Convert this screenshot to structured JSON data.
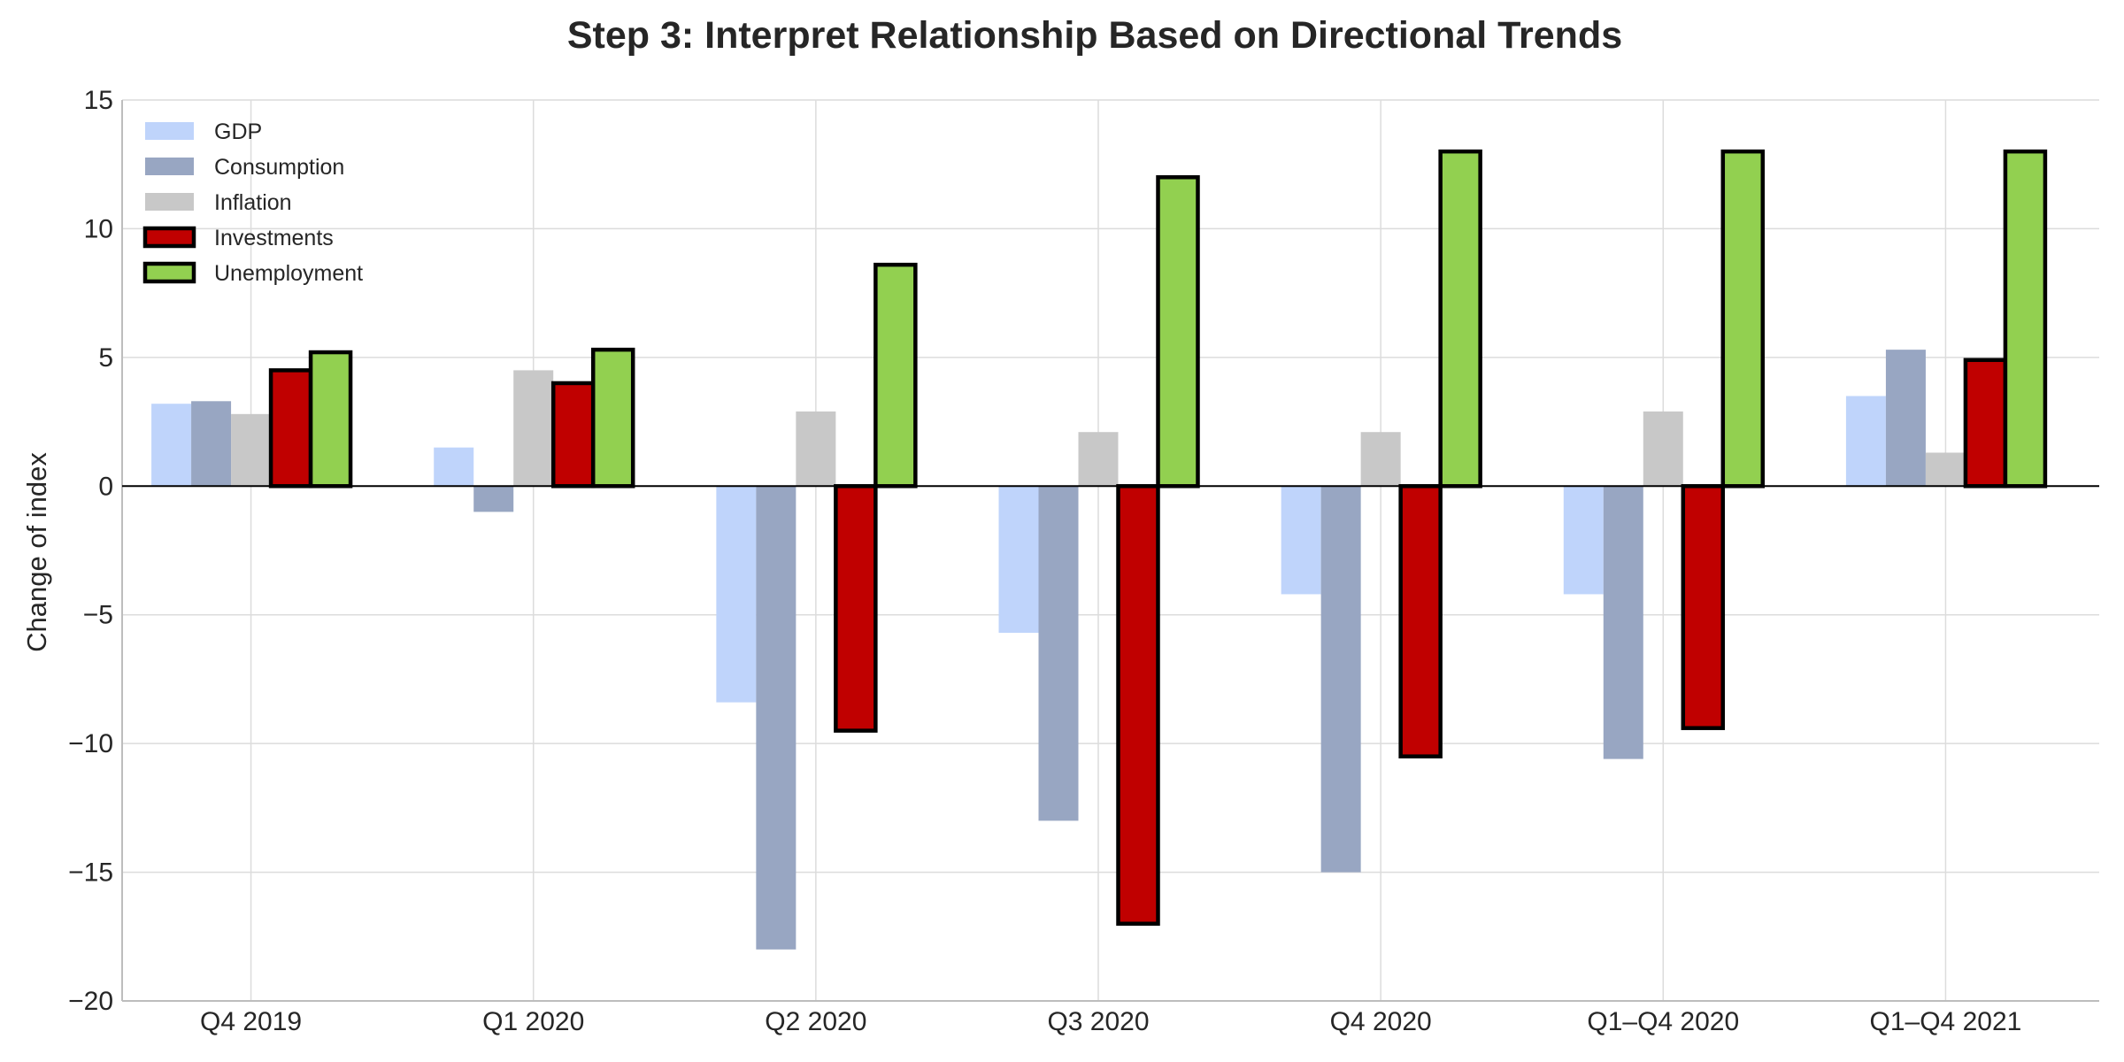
{
  "chart_data": {
    "type": "bar",
    "title": "Step 3: Interpret Relationship Based on Directional Trends",
    "xlabel": "",
    "ylabel": "Change of index",
    "ylim": [
      -20,
      15
    ],
    "yticks": [
      -20,
      -15,
      -10,
      -5,
      0,
      5,
      10,
      15
    ],
    "grid": true,
    "legend_position": "top-left",
    "categories": [
      "Q4 2019",
      "Q1 2020",
      "Q2 2020",
      "Q3 2020",
      "Q4 2020",
      "Q1–Q4 2020",
      "Q1–Q4 2021"
    ],
    "series": [
      {
        "name": "GDP",
        "color": "#bfd4fb",
        "outlined": false,
        "values": [
          3.2,
          1.5,
          -8.4,
          -5.7,
          -4.2,
          -4.2,
          3.5
        ]
      },
      {
        "name": "Consumption",
        "color": "#98a6c2",
        "outlined": false,
        "values": [
          3.3,
          -1.0,
          -18.0,
          -13.0,
          -15.0,
          -10.6,
          5.3
        ]
      },
      {
        "name": "Inflation",
        "color": "#c8c8c8",
        "outlined": false,
        "values": [
          2.8,
          4.5,
          2.9,
          2.1,
          2.1,
          2.9,
          1.3
        ]
      },
      {
        "name": "Investments",
        "color": "#c00000",
        "outlined": true,
        "values": [
          4.5,
          4.0,
          -9.5,
          -17.0,
          -10.5,
          -9.4,
          4.9
        ]
      },
      {
        "name": "Unemployment",
        "color": "#92d050",
        "outlined": true,
        "values": [
          5.2,
          5.3,
          8.6,
          12.0,
          13.0,
          13.0,
          13.0
        ]
      }
    ]
  }
}
